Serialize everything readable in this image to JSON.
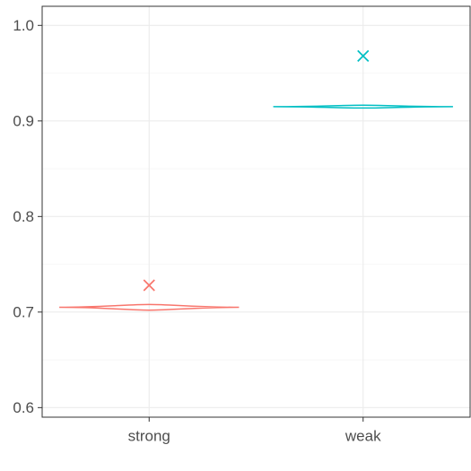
{
  "chart_data": {
    "type": "violin",
    "title": "",
    "xlabel": "",
    "ylabel": "",
    "categories": [
      "strong",
      "weak"
    ],
    "ylim": [
      0.59,
      1.02
    ],
    "yticks": [
      0.6,
      0.7,
      0.8,
      0.9,
      1.0
    ],
    "ytick_labels": [
      "0.6",
      "0.7",
      "0.8",
      "0.9",
      "1.0"
    ],
    "grid": true,
    "legend": "none",
    "series": [
      {
        "category": "strong",
        "color": "#F8766D",
        "violin_center": 0.705,
        "violin_upper": 0.708,
        "violin_lower": 0.702,
        "marker": "x",
        "marker_value": 0.728
      },
      {
        "category": "weak",
        "color": "#00BFC4",
        "violin_center": 0.915,
        "violin_upper": 0.9165,
        "violin_lower": 0.9135,
        "marker": "x",
        "marker_value": 0.968
      }
    ]
  }
}
